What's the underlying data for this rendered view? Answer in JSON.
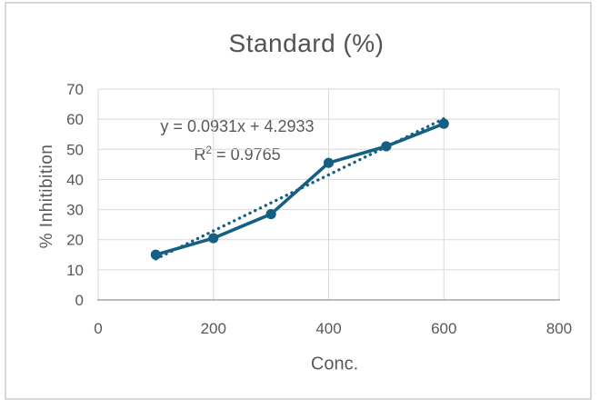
{
  "chart_data": {
    "type": "line",
    "title": "Standard (%)",
    "xlabel": "Conc.",
    "ylabel": "% Inhitibition",
    "x": [
      100,
      200,
      300,
      400,
      500,
      600
    ],
    "series": [
      {
        "name": "Standard",
        "values": [
          15,
          20.5,
          28.5,
          45.5,
          51,
          58.5
        ]
      }
    ],
    "xlim": [
      0,
      800
    ],
    "ylim": [
      0,
      70
    ],
    "x_ticks": [
      0,
      200,
      400,
      600,
      800
    ],
    "y_ticks": [
      0,
      10,
      20,
      30,
      40,
      50,
      60,
      70
    ],
    "grid": true,
    "legend": "none",
    "trendline": {
      "style": "dotted",
      "slope": 0.0931,
      "intercept": 4.2933,
      "r_squared": 0.9765,
      "x_range": [
        100,
        600
      ]
    },
    "annotation": {
      "equation_line": "y = 0.0931x + 4.2933",
      "r2_base": "R",
      "r2_exponent": "2",
      "r2_value": " = 0.9765"
    },
    "colors": {
      "series": "#156082",
      "grid": "#d9d9d9",
      "axis": "#a6a6a6",
      "text": "#595959",
      "title": "#535353",
      "frame_border": "#d9d9d9",
      "background": "#ffffff"
    }
  }
}
